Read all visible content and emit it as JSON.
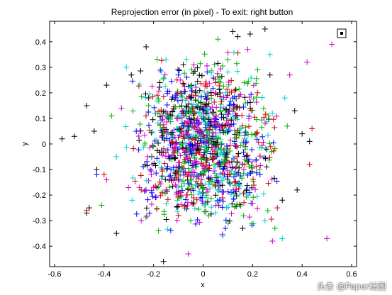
{
  "chart_data": {
    "type": "scatter",
    "title": "Reprojection error (in pixel) - To exit: right button",
    "xlabel": "x",
    "ylabel": "y",
    "xlim": [
      -0.62,
      0.62
    ],
    "ylim": [
      -0.48,
      0.48
    ],
    "xticks": [
      "-0.6",
      "-0.4",
      "-0.2",
      "0",
      "0.2",
      "0.4",
      "0.6"
    ],
    "yticks": [
      "0.4",
      "0.3",
      "0.2",
      "0.1",
      "0",
      "-0.1",
      "-0.2",
      "-0.3",
      "-0.4"
    ],
    "marker": "+",
    "grid": false,
    "legend": "none",
    "series_colors": [
      "#000000",
      "#d00000",
      "#00b000",
      "#0000ff",
      "#d000d0",
      "#00d0d0"
    ],
    "cluster": {
      "center": [
        0.0,
        0.0
      ],
      "radius_x": 0.32,
      "radius_y": 0.36
    },
    "series": [
      {
        "color": "#000000",
        "points": [
          [
            -0.57,
            0.02
          ],
          [
            -0.52,
            0.03
          ],
          [
            -0.47,
            0.15
          ],
          [
            -0.44,
            0.05
          ],
          [
            -0.39,
            0.23
          ],
          [
            -0.35,
            -0.35
          ],
          [
            -0.43,
            -0.1
          ],
          [
            -0.46,
            -0.25
          ],
          [
            -0.47,
            -0.27
          ],
          [
            -0.29,
            0.27
          ],
          [
            -0.23,
            0.38
          ],
          [
            -0.16,
            -0.46
          ],
          [
            0.12,
            0.44
          ],
          [
            0.14,
            0.42
          ],
          [
            0.19,
            0.43
          ],
          [
            0.25,
            0.45
          ],
          [
            0.4,
            0.04
          ],
          [
            0.43,
            0.01
          ],
          [
            0.38,
            -0.18
          ],
          [
            0.37,
            0.13
          ],
          [
            0.32,
            -0.22
          ],
          [
            -0.22,
            0.18
          ],
          [
            0.16,
            -0.33
          ],
          [
            -0.08,
            0.31
          ],
          [
            0.27,
            0.27
          ]
        ]
      },
      {
        "color": "#d00000",
        "points": [
          [
            -0.4,
            -0.12
          ],
          [
            0.44,
            0.06
          ],
          [
            0.43,
            -0.08
          ],
          [
            -0.47,
            -0.26
          ],
          [
            0.3,
            -0.25
          ],
          [
            -0.25,
            -0.18
          ],
          [
            0.22,
            0.2
          ],
          [
            -0.1,
            -0.28
          ],
          [
            0.05,
            0.24
          ],
          [
            0.13,
            -0.15
          ]
        ]
      },
      {
        "color": "#00b000",
        "points": [
          [
            -0.41,
            -0.24
          ],
          [
            -0.37,
            0.11
          ],
          [
            -0.18,
            -0.34
          ],
          [
            0.22,
            0.29
          ],
          [
            0.34,
            0.07
          ],
          [
            0.29,
            -0.33
          ],
          [
            -0.22,
            0.15
          ],
          [
            0.1,
            0.33
          ],
          [
            -0.05,
            -0.3
          ],
          [
            0.17,
            -0.02
          ],
          [
            0.06,
            0.41
          ]
        ]
      },
      {
        "color": "#0000ff",
        "points": [
          [
            -0.43,
            -0.12
          ],
          [
            0.09,
            -0.33
          ],
          [
            -0.1,
            0.27
          ],
          [
            0.23,
            -0.12
          ],
          [
            -0.27,
            0.05
          ],
          [
            0.12,
            0.18
          ]
        ]
      },
      {
        "color": "#d000d0",
        "points": [
          [
            0.52,
            0.39
          ],
          [
            0.5,
            -0.37
          ],
          [
            0.42,
            0.32
          ],
          [
            -0.39,
            -0.14
          ],
          [
            -0.25,
            -0.3
          ],
          [
            0.35,
            0.27
          ],
          [
            0.28,
            -0.38
          ],
          [
            -0.06,
            -0.43
          ],
          [
            0.18,
            0.37
          ],
          [
            -0.33,
            0.14
          ]
        ]
      },
      {
        "color": "#00d0d0",
        "points": [
          [
            0.32,
            -0.37
          ],
          [
            -0.31,
            0.3
          ],
          [
            0.33,
            0.18
          ],
          [
            -0.15,
            0.33
          ],
          [
            0.25,
            -0.3
          ],
          [
            0.27,
            0.35
          ],
          [
            -0.35,
            -0.05
          ],
          [
            0.08,
            -0.36
          ]
        ]
      }
    ],
    "cluster_points_per_series": 220
  },
  "annotation_icon": "boxed-dot-icon",
  "watermark": "头条 @Paper绘图"
}
